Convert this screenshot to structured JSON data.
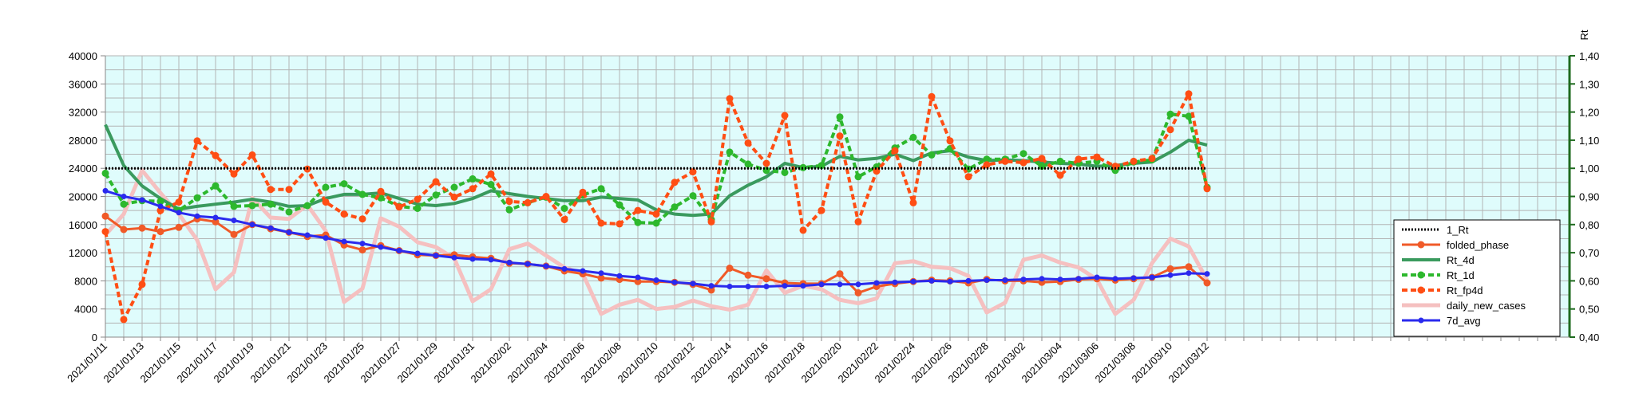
{
  "chart_data": {
    "type": "line",
    "y2label": "Rt",
    "ylim": [
      0,
      40000
    ],
    "yticks": [
      0,
      4000,
      8000,
      12000,
      16000,
      20000,
      24000,
      28000,
      32000,
      36000,
      40000
    ],
    "ytick_labels": [
      "0",
      "4000",
      "8000",
      "12000",
      "16000",
      "20000",
      "24000",
      "28000",
      "32000",
      "36000",
      "40000"
    ],
    "y2lim": [
      0.4,
      1.4
    ],
    "y2ticks": [
      0.4,
      0.5,
      0.6,
      0.7,
      0.8,
      0.9,
      1.0,
      1.1,
      1.2,
      1.3,
      1.4
    ],
    "y2tick_labels": [
      "0,40",
      "0,50",
      "0,60",
      "0,70",
      "0,80",
      "0,90",
      "1,00",
      "1,10",
      "1,20",
      "1,30",
      "1,40"
    ],
    "grid": true,
    "legend_position": "right",
    "x_start": "2021/01/11",
    "x_end": "2021/05/01",
    "x_tick_labels": [
      "2021/01/11",
      "2021/01/13",
      "2021/01/15",
      "2021/01/17",
      "2021/01/19",
      "2021/01/21",
      "2021/01/23",
      "2021/01/25",
      "2021/01/27",
      "2021/01/29",
      "2021/01/31",
      "2021/02/02",
      "2021/02/04",
      "2021/02/06",
      "2021/02/08",
      "2021/02/10",
      "2021/02/12",
      "2021/02/14",
      "2021/02/16",
      "2021/02/18",
      "2021/02/20",
      "2021/02/22",
      "2021/02/24",
      "2021/02/26",
      "2021/02/28",
      "2021/03/02",
      "2021/03/04",
      "2021/03/06",
      "2021/03/08",
      "2021/03/10",
      "2021/03/12"
    ],
    "x": [
      "2021/01/11",
      "2021/01/12",
      "2021/01/13",
      "2021/01/14",
      "2021/01/15",
      "2021/01/16",
      "2021/01/17",
      "2021/01/18",
      "2021/01/19",
      "2021/01/20",
      "2021/01/21",
      "2021/01/22",
      "2021/01/23",
      "2021/01/24",
      "2021/01/25",
      "2021/01/26",
      "2021/01/27",
      "2021/01/28",
      "2021/01/29",
      "2021/01/30",
      "2021/01/31",
      "2021/02/01",
      "2021/02/02",
      "2021/02/03",
      "2021/02/04",
      "2021/02/05",
      "2021/02/06",
      "2021/02/07",
      "2021/02/08",
      "2021/02/09",
      "2021/02/10",
      "2021/02/11",
      "2021/02/12",
      "2021/02/13",
      "2021/02/14",
      "2021/02/15",
      "2021/02/16",
      "2021/02/17",
      "2021/02/18",
      "2021/02/19",
      "2021/02/20",
      "2021/02/21",
      "2021/02/22",
      "2021/02/23",
      "2021/02/24",
      "2021/02/25",
      "2021/02/26",
      "2021/02/27",
      "2021/02/28",
      "2021/03/01",
      "2021/03/02",
      "2021/03/03",
      "2021/03/04",
      "2021/03/05",
      "2021/03/06",
      "2021/03/07",
      "2021/03/08",
      "2021/03/09",
      "2021/03/10",
      "2021/03/11",
      "2021/03/12"
    ],
    "series": [
      {
        "name": "1_Rt",
        "axis": "right",
        "color": "#000000",
        "style": "dotted",
        "marker": false,
        "values": [
          1.0,
          1.0,
          1.0,
          1.0,
          1.0,
          1.0,
          1.0,
          1.0,
          1.0,
          1.0,
          1.0,
          1.0,
          1.0,
          1.0,
          1.0,
          1.0,
          1.0,
          1.0,
          1.0,
          1.0,
          1.0,
          1.0,
          1.0,
          1.0,
          1.0,
          1.0,
          1.0,
          1.0,
          1.0,
          1.0,
          1.0,
          1.0,
          1.0,
          1.0,
          1.0,
          1.0,
          1.0,
          1.0,
          1.0,
          1.0,
          1.0,
          1.0,
          1.0,
          1.0,
          1.0,
          1.0,
          1.0,
          1.0,
          1.0,
          1.0,
          1.0,
          1.0,
          1.0,
          1.0,
          1.0,
          1.0,
          1.0,
          1.0,
          1.0,
          1.0,
          1.0
        ]
      },
      {
        "name": "folded_phase",
        "axis": "left",
        "color": "#f05a28",
        "style": "solid",
        "marker": true,
        "values": [
          17200,
          15300,
          15500,
          15000,
          15600,
          16800,
          16400,
          14600,
          16000,
          15400,
          14900,
          14300,
          14500,
          13100,
          12400,
          13000,
          12300,
          11700,
          11600,
          11700,
          11400,
          11200,
          10500,
          10400,
          10100,
          9400,
          9000,
          8400,
          8200,
          7900,
          7900,
          7800,
          7500,
          6700,
          9800,
          8800,
          8300,
          7700,
          7600,
          7600,
          9000,
          6300,
          7200,
          7600,
          7900,
          8100,
          8000,
          7700,
          8200,
          8000,
          8000,
          7800,
          7900,
          8200,
          8300,
          8100,
          8300,
          8500,
          9700,
          10000,
          7700
        ]
      },
      {
        "name": "Rt_4d",
        "axis": "left",
        "color": "#3a9a5e",
        "style": "solid",
        "marker": false,
        "values": [
          30200,
          24400,
          21500,
          19700,
          18200,
          18600,
          18900,
          19200,
          19600,
          19200,
          18600,
          18700,
          19700,
          20300,
          20300,
          20500,
          19700,
          18900,
          18700,
          19000,
          19700,
          20800,
          20400,
          20000,
          19700,
          19400,
          19400,
          19900,
          19700,
          19500,
          18100,
          17500,
          17300,
          17500,
          20100,
          21600,
          22800,
          24700,
          24100,
          24300,
          25700,
          25200,
          25400,
          26000,
          25100,
          26200,
          26500,
          25600,
          25100,
          25200,
          25100,
          24900,
          24700,
          24600,
          24300,
          24400,
          24700,
          24900,
          26300,
          28000,
          27300
        ]
      },
      {
        "name": "Rt_1d",
        "axis": "left",
        "color": "#2db82d",
        "style": "dashed",
        "marker": true,
        "values": [
          23300,
          18900,
          19400,
          19300,
          18000,
          19800,
          21500,
          18600,
          18700,
          18900,
          17800,
          18700,
          21300,
          21800,
          20300,
          19800,
          18600,
          18300,
          20200,
          21300,
          22500,
          21700,
          18100,
          19100,
          19900,
          18300,
          20200,
          21100,
          18800,
          16300,
          16200,
          18500,
          20100,
          16700,
          26300,
          24600,
          23700,
          23400,
          24100,
          24400,
          31300,
          22800,
          24200,
          26900,
          28400,
          25900,
          26800,
          23900,
          25300,
          25300,
          26100,
          24300,
          25000,
          24700,
          25000,
          23700,
          24900,
          25200,
          31700,
          31400,
          21300
        ]
      },
      {
        "name": "Rt_fp4d",
        "axis": "left",
        "color": "#ff4e14",
        "style": "dashed",
        "marker": true,
        "values": [
          15000,
          2500,
          7500,
          18000,
          19200,
          27900,
          25800,
          23200,
          25900,
          21000,
          21000,
          23900,
          19200,
          17500,
          16800,
          20700,
          18500,
          19600,
          22100,
          19900,
          21100,
          23200,
          19300,
          19100,
          20000,
          16700,
          20600,
          16200,
          16100,
          18000,
          17500,
          22000,
          23500,
          16400,
          33900,
          27600,
          24700,
          31500,
          15200,
          18000,
          28600,
          16400,
          23600,
          26500,
          19100,
          34200,
          27900,
          22800,
          24500,
          25000,
          24800,
          25400,
          23000,
          25300,
          25600,
          24300,
          25000,
          25400,
          29500,
          34600,
          21100
        ]
      },
      {
        "name": "daily_new_cases",
        "axis": "left",
        "color": "#f5c0c0",
        "style": "solid",
        "marker": false,
        "values": [
          14500,
          17500,
          23700,
          20500,
          17500,
          13800,
          6800,
          9200,
          19800,
          17000,
          16800,
          18800,
          15100,
          5000,
          6900,
          16900,
          15700,
          13500,
          12800,
          11200,
          5100,
          6800,
          12500,
          13300,
          11600,
          9900,
          9000,
          3300,
          4600,
          5300,
          4000,
          4300,
          5200,
          4400,
          3900,
          4600,
          9500,
          6300,
          7300,
          6800,
          5300,
          4800,
          5500,
          10500,
          10800,
          10000,
          9800,
          8700,
          3500,
          4900,
          11000,
          11600,
          10600,
          9900,
          8200,
          3300,
          5300,
          10500,
          14000,
          12900,
          8100
        ]
      },
      {
        "name": "7d_avg",
        "axis": "left",
        "color": "#2a2aee",
        "style": "solid",
        "marker": true,
        "values": [
          20800,
          20000,
          19500,
          18600,
          17700,
          17200,
          17000,
          16600,
          16000,
          15500,
          14900,
          14500,
          14100,
          13600,
          13300,
          12800,
          12300,
          11900,
          11600,
          11300,
          11100,
          11000,
          10600,
          10400,
          10100,
          9700,
          9400,
          9100,
          8700,
          8500,
          8100,
          7800,
          7600,
          7300,
          7200,
          7200,
          7200,
          7300,
          7300,
          7500,
          7500,
          7500,
          7700,
          7800,
          7900,
          8000,
          7900,
          8000,
          8100,
          8100,
          8200,
          8300,
          8200,
          8300,
          8500,
          8300,
          8400,
          8500,
          8800,
          9100,
          9000
        ]
      }
    ]
  }
}
